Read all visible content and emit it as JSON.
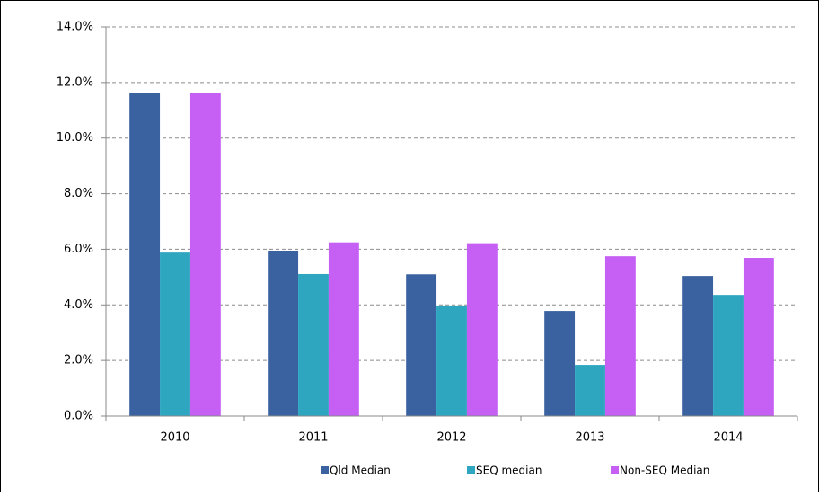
{
  "chart_data": {
    "type": "bar",
    "categories": [
      "2010",
      "2011",
      "2012",
      "2013",
      "2014"
    ],
    "series": [
      {
        "name": "Qld Median",
        "color": "#3a62a0",
        "values": [
          11.64,
          5.95,
          5.1,
          3.78,
          5.04
        ]
      },
      {
        "name": "SEQ median",
        "color": "#2ea6c0",
        "values": [
          5.88,
          5.11,
          3.98,
          1.84,
          4.36
        ]
      },
      {
        "name": "Non-SEQ Median",
        "color": "#c660f5",
        "values": [
          11.64,
          6.25,
          6.22,
          5.75,
          5.69
        ]
      }
    ],
    "ylim": [
      0,
      14
    ],
    "yticks": [
      {
        "value": 0,
        "label": "0.0%"
      },
      {
        "value": 2,
        "label": "2.0%"
      },
      {
        "value": 4,
        "label": "4.0%"
      },
      {
        "value": 6,
        "label": "6.0%"
      },
      {
        "value": 8,
        "label": "8.0%"
      },
      {
        "value": 10,
        "label": "10.0%"
      },
      {
        "value": 12,
        "label": "12.0%"
      },
      {
        "value": 14,
        "label": "14.0%"
      }
    ],
    "grid": true,
    "legend": "bottom"
  }
}
